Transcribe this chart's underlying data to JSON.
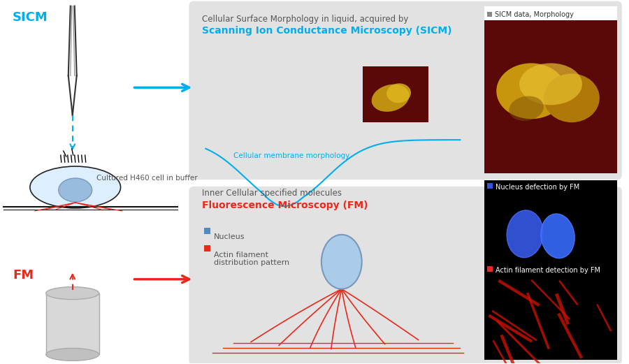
{
  "bg_color": "#ffffff",
  "panel_color": "#e2e2e2",
  "sicm_label_color": "#00aeef",
  "fm_label_color": "#e8291c",
  "gray_text_color": "#555555",
  "blue_line_color": "#00aeef",
  "red_line_color": "#e8291c",
  "dark_red_bg": "#6a0a0a",
  "black_color": "#000000",
  "title1_line1": "Cellular Surface Morphology in liquid, acquired by",
  "title1_line2": "Scanning Ion Conductance Microscopy (SICM)",
  "caption1": "Cellular membrane morphology",
  "title2_line1": "Inner Cellular specified molecules",
  "title2_line2": "Fluorescence Microscopy (FM)",
  "legend2_nucleus": "Nucleus",
  "legend2_actin": "Actin filament\ndistribution pattern",
  "sicm_label": "SICM",
  "fm_label": "FM",
  "cell_label": "Cultured H460 cell in buffer",
  "panel1_label": "SICM data, Morphology",
  "panel2_label": "Nucleus defection by FM",
  "panel3_label": "Actin filament detection by FM"
}
